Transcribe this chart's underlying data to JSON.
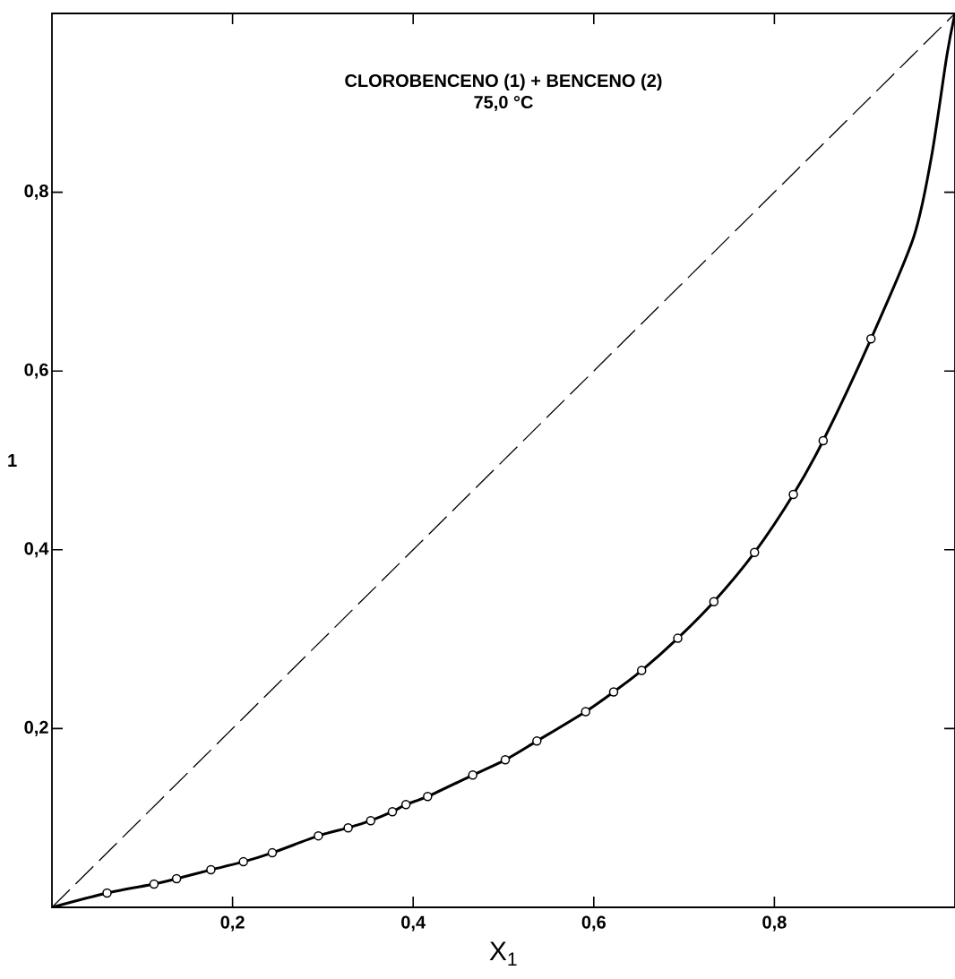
{
  "chart_data": {
    "type": "line",
    "title": "CLOROBENCENO (1) + BENCENO (2)",
    "subtitle": "75,0 °C",
    "xlabel": "X$_{1}$",
    "ylabel": "1",
    "xlim": [
      0,
      1
    ],
    "ylim": [
      0,
      1
    ],
    "xticks": [
      {
        "value": 0.2,
        "label": "0,2"
      },
      {
        "value": 0.4,
        "label": "0,4"
      },
      {
        "value": 0.6,
        "label": "0,6"
      },
      {
        "value": 0.8,
        "label": "0,8"
      }
    ],
    "yticks": [
      {
        "value": 0.2,
        "label": "0,2"
      },
      {
        "value": 0.4,
        "label": "0,4"
      },
      {
        "value": 0.6,
        "label": "0,6"
      },
      {
        "value": 0.8,
        "label": "0,8"
      }
    ],
    "series": [
      {
        "type": "line",
        "color": "#000000",
        "line_style": "dashed",
        "marker": "none",
        "x": [
          0,
          1
        ],
        "values": [
          0,
          1
        ]
      },
      {
        "type": "line",
        "color": "#000000",
        "line_style": "solid",
        "marker": "none",
        "x": [
          0,
          0.061,
          0.113,
          0.138,
          0.176,
          0.212,
          0.244,
          0.295,
          0.328,
          0.353,
          0.377,
          0.392,
          0.416,
          0.466,
          0.502,
          0.537,
          0.591,
          0.622,
          0.653,
          0.693,
          0.733,
          0.778,
          0.821,
          0.854,
          0.907,
          0.954,
          0.974,
          0.991,
          1
        ],
        "values": [
          0,
          0.016,
          0.026,
          0.032,
          0.042,
          0.051,
          0.061,
          0.08,
          0.089,
          0.097,
          0.107,
          0.115,
          0.124,
          0.148,
          0.165,
          0.186,
          0.219,
          0.241,
          0.265,
          0.301,
          0.342,
          0.397,
          0.462,
          0.522,
          0.636,
          0.749,
          0.84,
          0.953,
          1
        ]
      },
      {
        "type": "scatter",
        "color": "#000000",
        "marker": "circle",
        "x": [
          0.061,
          0.113,
          0.138,
          0.176,
          0.212,
          0.244,
          0.295,
          0.328,
          0.353,
          0.377,
          0.392,
          0.416,
          0.466,
          0.502,
          0.537,
          0.591,
          0.622,
          0.653,
          0.693,
          0.733,
          0.778,
          0.821,
          0.854,
          0.907
        ],
        "values": [
          0.016,
          0.026,
          0.032,
          0.042,
          0.051,
          0.061,
          0.08,
          0.089,
          0.097,
          0.107,
          0.115,
          0.124,
          0.148,
          0.165,
          0.186,
          0.219,
          0.241,
          0.265,
          0.301,
          0.342,
          0.397,
          0.462,
          0.522,
          0.636
        ]
      }
    ]
  }
}
